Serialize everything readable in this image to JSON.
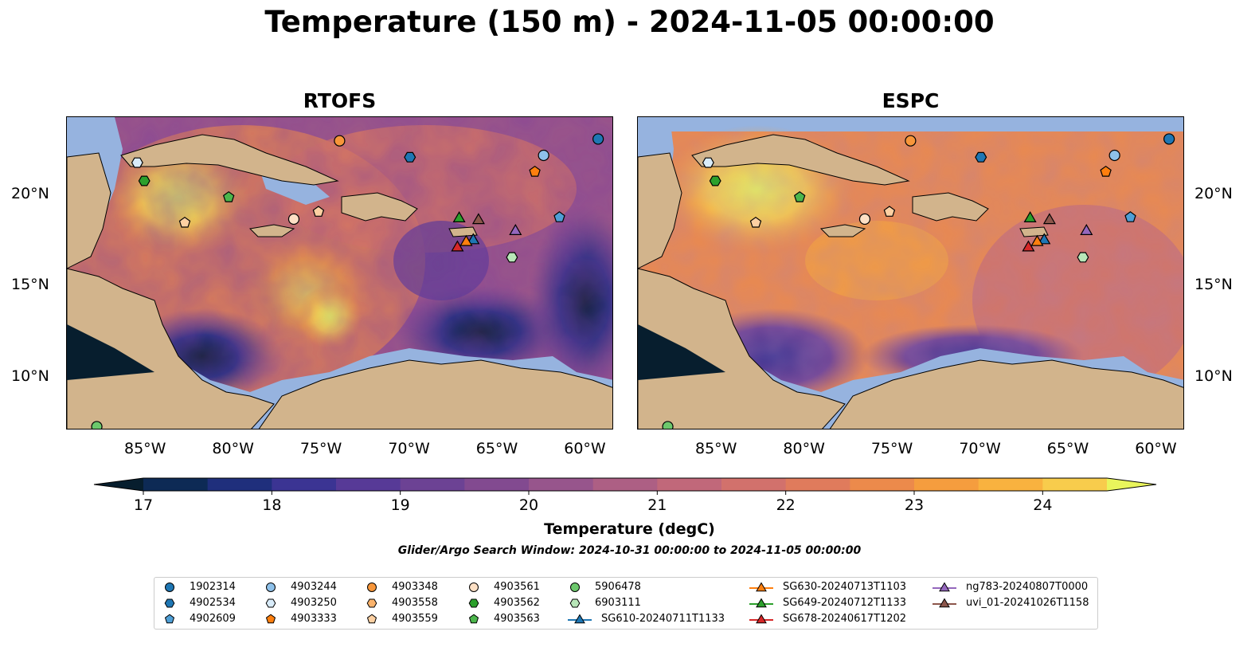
{
  "title": "Temperature (150 m) - 2024-11-05 00:00:00",
  "panels": {
    "left_title": "RTOFS",
    "right_title": "ESPC"
  },
  "axes": {
    "lon_ticks": [
      "85°W",
      "80°W",
      "75°W",
      "70°W",
      "65°W",
      "60°W"
    ],
    "lat_ticks": [
      "20°N",
      "15°N",
      "10°N"
    ]
  },
  "colorbar": {
    "label": "Temperature (degC)",
    "ticks": [
      "17",
      "18",
      "19",
      "20",
      "21",
      "22",
      "23",
      "24"
    ],
    "range": [
      17,
      24.5
    ],
    "colors": [
      "#071e2e",
      "#0d2a55",
      "#1f2f7c",
      "#3b3493",
      "#573a97",
      "#6c4294",
      "#824a90",
      "#97558c",
      "#ad5f84",
      "#c1687a",
      "#d2716c",
      "#e07b5c",
      "#ec8a4b",
      "#f59d3e",
      "#f9b23f",
      "#f8cc4c",
      "#e9f55c"
    ]
  },
  "search_window": "Glider/Argo Search Window: 2024-10-31 00:00:00 to 2024-11-05 00:00:00",
  "colors": {
    "land": "#d2b48c",
    "ocean_shallow": "#96b3df",
    "deep_cold": "#071e2e"
  },
  "legend": {
    "items": [
      {
        "label": "1902314",
        "marker": "circle",
        "color": "#1f77b4"
      },
      {
        "label": "4902534",
        "marker": "hexagon",
        "color": "#1f77b4"
      },
      {
        "label": "4902609",
        "marker": "pentagon",
        "color": "#4f9fd6"
      },
      {
        "label": "4903244",
        "marker": "circle",
        "color": "#8ec1ea"
      },
      {
        "label": "4903250",
        "marker": "hexagon",
        "color": "#d9ecfa"
      },
      {
        "label": "4903333",
        "marker": "pentagon",
        "color": "#ff7f0e"
      },
      {
        "label": "4903348",
        "marker": "circle",
        "color": "#f7963a"
      },
      {
        "label": "4903558",
        "marker": "hexagon",
        "color": "#fbb36c"
      },
      {
        "label": "4903559",
        "marker": "pentagon",
        "color": "#fdd0a2"
      },
      {
        "label": "4903561",
        "marker": "circle",
        "color": "#fde0c5"
      },
      {
        "label": "4903562",
        "marker": "hexagon",
        "color": "#2ca02c"
      },
      {
        "label": "4903563",
        "marker": "pentagon",
        "color": "#4cb64c"
      },
      {
        "label": "5906478",
        "marker": "circle",
        "color": "#6cc86c"
      },
      {
        "label": "6903111",
        "marker": "hexagon",
        "color": "#b8e6b8"
      },
      {
        "label": "SG610-20240711T1133",
        "marker": "triangle",
        "color": "#1f77b4"
      },
      {
        "label": "SG630-20240713T1103",
        "marker": "triangle",
        "color": "#ff7f0e"
      },
      {
        "label": "SG649-20240712T1133",
        "marker": "triangle",
        "color": "#2ca02c"
      },
      {
        "label": "SG678-20240617T1202",
        "marker": "triangle",
        "color": "#d62728"
      },
      {
        "label": "ng783-20240807T0000",
        "marker": "triangle",
        "color": "#9467bd"
      },
      {
        "label": "uvi_01-20241026T1158",
        "marker": "triangle",
        "color": "#8c564b"
      }
    ]
  },
  "floats": [
    {
      "lon": -59.1,
      "lat": 23.1,
      "marker": "circle",
      "color": "#1f77b4"
    },
    {
      "lon": -62.2,
      "lat": 22.2,
      "marker": "circle",
      "color": "#8ec1ea"
    },
    {
      "lon": -69.8,
      "lat": 22.1,
      "marker": "hexagon",
      "color": "#1f77b4"
    },
    {
      "lon": -73.8,
      "lat": 23.0,
      "marker": "circle",
      "color": "#f7963a"
    },
    {
      "lon": -62.7,
      "lat": 21.3,
      "marker": "pentagon",
      "color": "#ff7f0e"
    },
    {
      "lon": -85.3,
      "lat": 21.8,
      "marker": "hexagon",
      "color": "#d9ecfa"
    },
    {
      "lon": -84.9,
      "lat": 20.8,
      "marker": "hexagon",
      "color": "#2ca02c"
    },
    {
      "lon": -80.1,
      "lat": 19.9,
      "marker": "pentagon",
      "color": "#4cb64c"
    },
    {
      "lon": -82.6,
      "lat": 18.5,
      "marker": "pentagon",
      "color": "#fdd0a2"
    },
    {
      "lon": -76.4,
      "lat": 18.7,
      "marker": "circle",
      "color": "#fde0c5"
    },
    {
      "lon": -75.0,
      "lat": 19.1,
      "marker": "pentagon",
      "color": "#fdd0a2"
    },
    {
      "lon": -61.3,
      "lat": 18.8,
      "marker": "pentagon",
      "color": "#4f9fd6"
    },
    {
      "lon": -64.0,
      "lat": 16.6,
      "marker": "hexagon",
      "color": "#b8e6b8"
    },
    {
      "lon": -87.6,
      "lat": 7.3,
      "marker": "circle",
      "color": "#6cc86c"
    },
    {
      "lon": -67.0,
      "lat": 18.8,
      "marker": "triangle",
      "color": "#2ca02c"
    },
    {
      "lon": -65.9,
      "lat": 18.7,
      "marker": "triangle",
      "color": "#8c564b"
    },
    {
      "lon": -66.2,
      "lat": 17.6,
      "marker": "triangle",
      "color": "#1f77b4"
    },
    {
      "lon": -66.6,
      "lat": 17.5,
      "marker": "triangle",
      "color": "#ff7f0e"
    },
    {
      "lon": -67.1,
      "lat": 17.2,
      "marker": "triangle",
      "color": "#d62728"
    },
    {
      "lon": -63.8,
      "lat": 18.1,
      "marker": "triangle",
      "color": "#9467bd"
    }
  ]
}
